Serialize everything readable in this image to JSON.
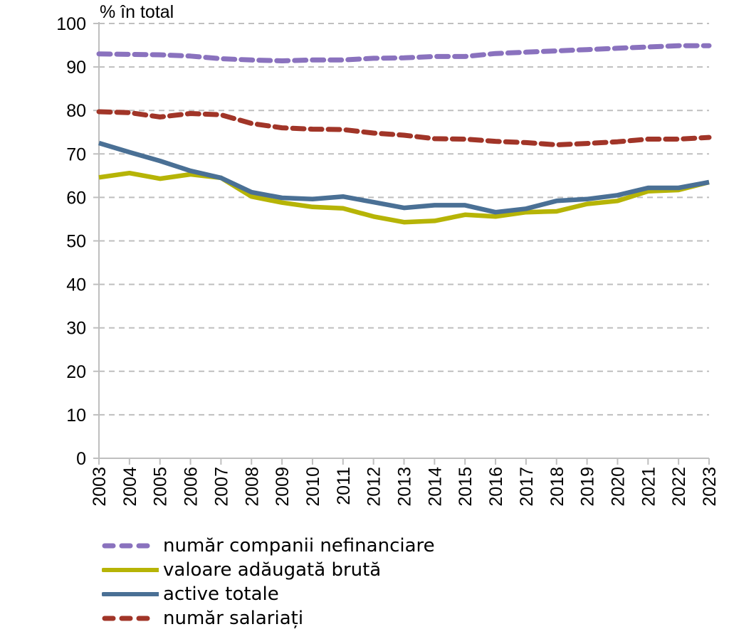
{
  "chart_data": {
    "type": "line",
    "title": "",
    "ylabel": "% în total",
    "xlabel": "",
    "ylim": [
      0,
      100
    ],
    "yticks": [
      0,
      10,
      20,
      30,
      40,
      50,
      60,
      70,
      80,
      90,
      100
    ],
    "grid": "horizontal-dashed",
    "legend_position": "bottom-left",
    "x": [
      "2003",
      "2004",
      "2005",
      "2006",
      "2007",
      "2008",
      "2009",
      "2010",
      "2011",
      "2012",
      "2013",
      "2014",
      "2015",
      "2016",
      "2017",
      "2018",
      "2019",
      "2020",
      "2021",
      "2022",
      "2023"
    ],
    "series": [
      {
        "name": "număr companii nefinanciare",
        "color": "#8A72BE",
        "style": "dashed",
        "values": [
          93.0,
          92.9,
          92.8,
          92.5,
          91.9,
          91.6,
          91.4,
          91.6,
          91.6,
          92.0,
          92.1,
          92.4,
          92.4,
          93.1,
          93.4,
          93.7,
          94.0,
          94.3,
          94.6,
          94.9,
          94.9
        ]
      },
      {
        "name": "valoare adăugată brută",
        "color": "#B6B406",
        "style": "solid",
        "values": [
          64.6,
          65.6,
          64.3,
          65.3,
          64.5,
          60.2,
          58.8,
          57.8,
          57.5,
          55.6,
          54.3,
          54.6,
          56.0,
          55.6,
          56.6,
          56.8,
          58.5,
          59.2,
          61.4,
          61.7,
          63.5
        ]
      },
      {
        "name": "active totale",
        "color": "#4A7095",
        "style": "solid",
        "values": [
          72.5,
          70.4,
          68.4,
          66.1,
          64.5,
          61.2,
          59.9,
          59.6,
          60.2,
          58.9,
          57.6,
          58.2,
          58.2,
          56.6,
          57.4,
          59.2,
          59.6,
          60.5,
          62.2,
          62.2,
          63.5
        ]
      },
      {
        "name": "număr salariați",
        "color": "#A13528",
        "style": "dashed",
        "values": [
          79.7,
          79.5,
          78.5,
          79.3,
          79.0,
          77.0,
          76.0,
          75.7,
          75.6,
          74.8,
          74.3,
          73.5,
          73.4,
          72.9,
          72.6,
          72.1,
          72.4,
          72.8,
          73.4,
          73.4,
          73.8
        ]
      }
    ]
  },
  "colors": {
    "grid": "#BFBFBF",
    "axis": "#BFBFBF"
  }
}
